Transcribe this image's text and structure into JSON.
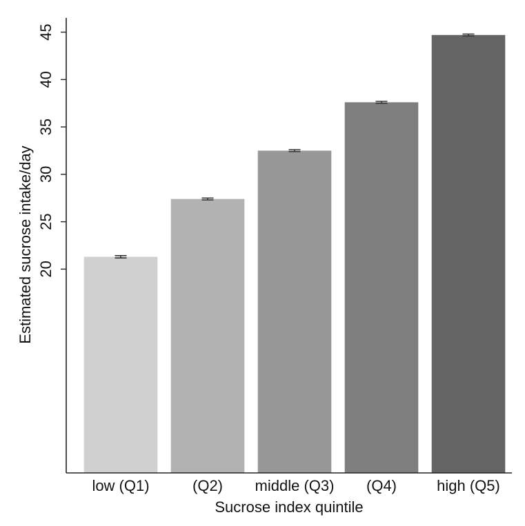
{
  "chart_data": {
    "type": "bar",
    "categories": [
      "low (Q1)",
      "(Q2)",
      "middle (Q3)",
      "(Q4)",
      "high (Q5)"
    ],
    "values": [
      21.3,
      27.4,
      32.5,
      37.6,
      44.7
    ],
    "error_bars": [
      0.12,
      0.1,
      0.1,
      0.1,
      0.1
    ],
    "colors": [
      "#d0d0d0",
      "#b2b2b2",
      "#989898",
      "#7e7e7e",
      "#646464"
    ],
    "ylim": [
      -1.5,
      46.5
    ],
    "yticks": [
      20,
      25,
      30,
      35,
      40,
      45
    ],
    "ylabel": "Estimated sucrose intake/day",
    "xlabel": "Sucrose index quintile",
    "grid": false,
    "legend": "none"
  }
}
